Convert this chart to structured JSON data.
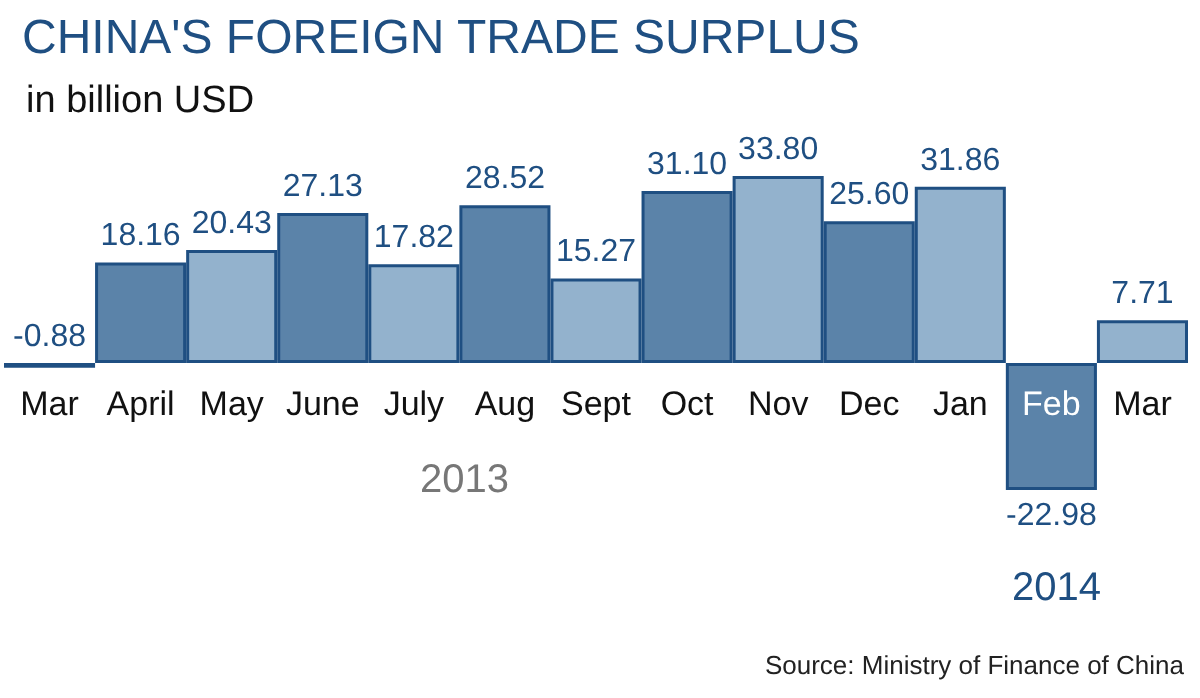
{
  "chart_data": {
    "type": "bar",
    "title": "CHINA'S FOREIGN TRADE SURPLUS",
    "subtitle": "in billion USD",
    "categories": [
      "Mar",
      "April",
      "May",
      "June",
      "July",
      "Aug",
      "Sept",
      "Oct",
      "Nov",
      "Dec",
      "Jan",
      "Feb",
      "Mar"
    ],
    "values": [
      -0.88,
      18.16,
      20.43,
      27.13,
      17.82,
      28.52,
      15.27,
      31.1,
      33.8,
      25.6,
      31.86,
      -22.98,
      7.71
    ],
    "value_labels": [
      "-0.88",
      "18.16",
      "20.43",
      "27.13",
      "17.82",
      "28.52",
      "15.27",
      "31.10",
      "33.80",
      "25.60",
      "31.86",
      "-22.98",
      "7.71"
    ],
    "colors": [
      "#5b83a9",
      "#5b83a9",
      "#93b2cd",
      "#5b83a9",
      "#93b2cd",
      "#5b83a9",
      "#93b2cd",
      "#5b83a9",
      "#93b2cd",
      "#5b83a9",
      "#93b2cd",
      "#5b83a9",
      "#93b2cd"
    ],
    "annotations": [
      "2013",
      "2014",
      "Source: Ministry of Finance of China"
    ]
  }
}
